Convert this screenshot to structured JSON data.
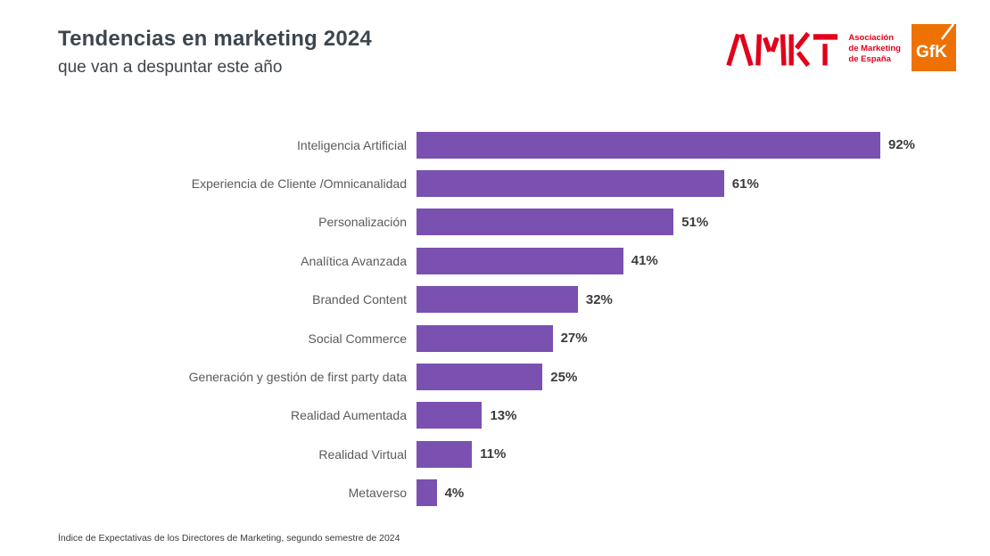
{
  "header": {
    "title": "Tendencias en marketing 2024",
    "subtitle": "que van a despuntar este año"
  },
  "logos": {
    "amkt": {
      "name": "AMKT",
      "tagline": [
        "Asociación",
        "de Marketing",
        "de España"
      ],
      "color": "#e2001a"
    },
    "gfk": {
      "label": "GfK",
      "color": "#ee7203"
    }
  },
  "chart_data": {
    "type": "bar",
    "orientation": "horizontal",
    "title": "Tendencias en marketing 2024",
    "subtitle": "que van a despuntar este año",
    "categories": [
      "Inteligencia Artificial",
      "Experiencia de Cliente /Omnicanalidad",
      "Personalización",
      "Analítica Avanzada",
      "Branded Content",
      "Social Commerce",
      "Generación y gestión de first party data",
      "Realidad Aumentada",
      "Realidad Virtual",
      "Metaverso"
    ],
    "values": [
      92,
      61,
      51,
      41,
      32,
      27,
      25,
      13,
      11,
      4
    ],
    "value_suffix": "%",
    "xlabel": "",
    "ylabel": "",
    "xlim": [
      0,
      100
    ],
    "bar_color": "#7a51b0",
    "grid": false,
    "legend": false,
    "data_labels": "outside-end"
  },
  "footer": {
    "note": "Índice de Expectativas de los Directores de Marketing, segundo semestre de 2024"
  }
}
